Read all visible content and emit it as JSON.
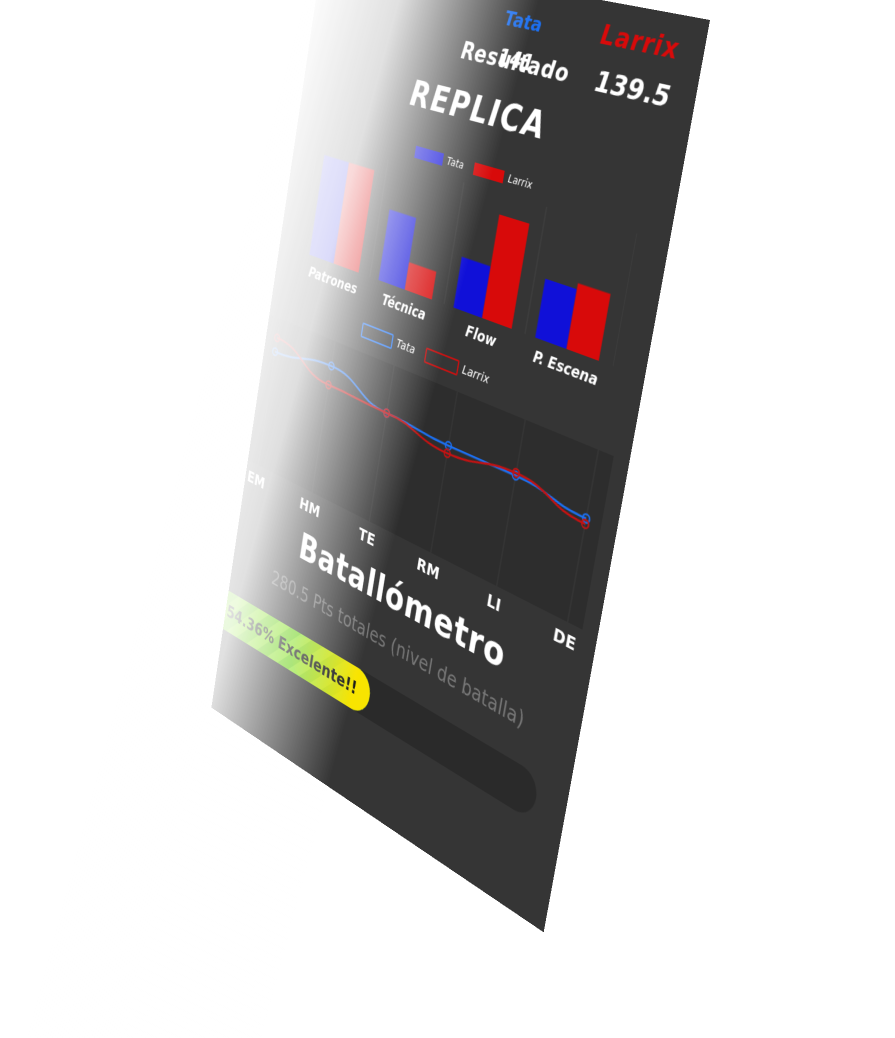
{
  "header": {
    "fighter_left": "Tata",
    "fighter_right": "Larrix",
    "score_left": "141",
    "result_label": "Resultado",
    "result_value": "139.5",
    "round_title": "REPLICA"
  },
  "colors": {
    "tata": "#1010d8",
    "larrix": "#d80a0a",
    "tata_line": "#1c6ff0",
    "larrix_line": "#c41212",
    "background": "#353535"
  },
  "chart_data": [
    {
      "type": "bar",
      "categories": [
        "Patrones",
        "Técnica",
        "Flow",
        "P. Escena"
      ],
      "series": [
        {
          "name": "Tata",
          "values": [
            9.5,
            6.5,
            4.5,
            5.0
          ]
        },
        {
          "name": "Larrix",
          "values": [
            9.5,
            2.5,
            9.0,
            5.5
          ]
        }
      ],
      "ylim": [
        0,
        10
      ],
      "legend": "top-center",
      "grid": true
    },
    {
      "type": "line",
      "categories": [
        "EM",
        "HM",
        "TE",
        "RM",
        "LI",
        "DE"
      ],
      "series": [
        {
          "name": "Tata",
          "values": [
            26.5,
            28.5,
            24.0,
            23.0,
            23.0,
            21.0
          ]
        },
        {
          "name": "Larrix",
          "values": [
            29.5,
            24.5,
            24.0,
            21.5,
            23.5,
            20.0
          ]
        }
      ],
      "ylim": [
        10,
        32
      ],
      "legend": "top-center",
      "grid": true
    }
  ],
  "gauge": {
    "title": "Batallómetro",
    "subtitle": "280.5 Pts totales (nivel de batalla)",
    "percent": 54.36,
    "label": "54.36% Excelente!!"
  }
}
